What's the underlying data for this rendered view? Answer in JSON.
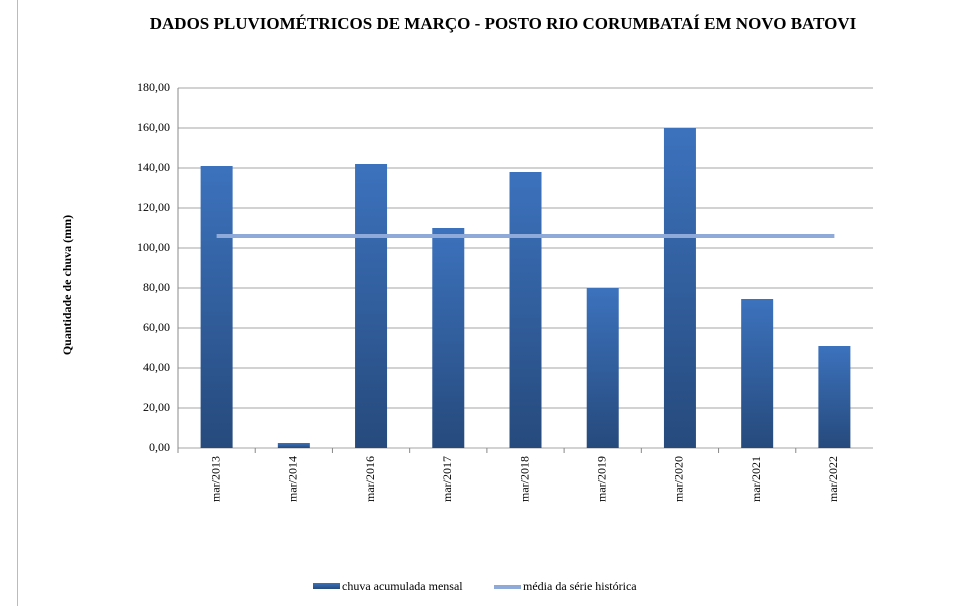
{
  "chart_data": {
    "type": "bar",
    "title": "DADOS PLUVIOMÉTRICOS DE MARÇO - POSTO RIO CORUMBATAÍ EM NOVO BATOVI",
    "ylabel": "Quantidade de chuva (mm)",
    "categories": [
      "mar/2013",
      "mar/2014",
      "mar/2016",
      "mar/2017",
      "mar/2018",
      "mar/2019",
      "mar/2020",
      "mar/2021",
      "mar/2022"
    ],
    "series": [
      {
        "name": "chuva acumulada mensal",
        "color": "#3a6bb0",
        "type": "bar",
        "values": [
          141,
          2.5,
          142,
          110,
          138,
          80,
          160,
          74.5,
          51
        ]
      },
      {
        "name": "média da série histórica",
        "color": "#8faad8",
        "type": "line",
        "values": [
          106,
          106,
          106,
          106,
          106,
          106,
          106,
          106,
          106
        ]
      }
    ],
    "ylim": [
      0,
      180
    ],
    "yticks": [
      {
        "value": 0,
        "label": "0,00"
      },
      {
        "value": 20,
        "label": "20,00"
      },
      {
        "value": 40,
        "label": "40,00"
      },
      {
        "value": 60,
        "label": "60,00"
      },
      {
        "value": 80,
        "label": "80,00"
      },
      {
        "value": 100,
        "label": "100,00"
      },
      {
        "value": 120,
        "label": "120,00"
      },
      {
        "value": 140,
        "label": "140,00"
      },
      {
        "value": 160,
        "label": "160,00"
      },
      {
        "value": 180,
        "label": "180,00"
      }
    ],
    "grid": true
  }
}
